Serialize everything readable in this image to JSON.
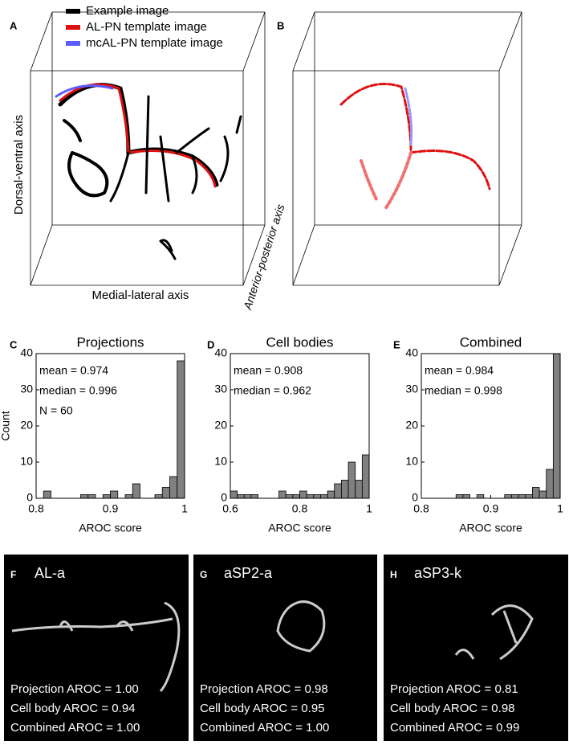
{
  "panels": [
    {
      "letter": "A",
      "legend": [
        {
          "label": "Example image",
          "color": "#000000"
        },
        {
          "label": "AL-PN template image",
          "color": "#e01010"
        },
        {
          "label": "mcAL-PN template image",
          "color": "#5b5bff"
        }
      ],
      "axes": [
        "Dorsal-ventral axis",
        "Medial-lateral axis",
        "Anterior-posterior axis"
      ]
    },
    {
      "letter": "B"
    }
  ],
  "chart_data": [
    {
      "type": "histogram",
      "letter": "C",
      "title": "Projections",
      "bins": [
        0.8,
        0.81,
        0.82,
        0.83,
        0.84,
        0.85,
        0.86,
        0.87,
        0.88,
        0.89,
        0.9,
        0.91,
        0.92,
        0.93,
        0.94,
        0.95,
        0.96,
        0.97,
        0.98,
        0.99,
        1
      ],
      "counts": [
        0,
        2,
        0,
        0,
        0,
        0,
        1,
        1,
        0,
        1,
        2,
        0,
        1,
        4,
        0,
        0,
        1,
        3,
        6,
        38
      ],
      "color": "#808080",
      "xlim": [
        0.8,
        1
      ],
      "xticks": [
        0.8,
        0.9,
        1
      ],
      "ylim": [
        0,
        40
      ],
      "yticks": [
        0,
        10,
        20,
        30,
        40
      ],
      "xlabel": "AROC score",
      "ylabel": "Count",
      "annotations": [
        "mean = 0.974",
        "median  = 0.996",
        "N = 60"
      ]
    },
    {
      "type": "histogram",
      "letter": "D",
      "title": "Cell bodies",
      "bins": [
        0.6,
        0.62,
        0.64,
        0.66,
        0.68,
        0.7,
        0.72,
        0.74,
        0.76,
        0.78,
        0.8,
        0.82,
        0.84,
        0.86,
        0.88,
        0.9,
        0.92,
        0.94,
        0.96,
        0.98,
        1
      ],
      "counts": [
        2,
        1,
        1,
        1,
        0,
        0,
        0,
        2,
        1,
        1,
        2,
        1,
        1,
        1,
        2,
        4,
        5,
        10,
        5,
        12
      ],
      "color": "#808080",
      "xlim": [
        0.6,
        1
      ],
      "xticks": [
        0.6,
        0.8,
        1
      ],
      "ylim": [
        0,
        40
      ],
      "yticks": [
        0,
        10,
        20,
        30,
        40
      ],
      "xlabel": "AROC score",
      "annotations": [
        "mean = 0.908",
        "median  = 0.962"
      ]
    },
    {
      "type": "histogram",
      "letter": "E",
      "title": "Combined",
      "bins": [
        0.8,
        0.81,
        0.82,
        0.83,
        0.84,
        0.85,
        0.86,
        0.87,
        0.88,
        0.89,
        0.9,
        0.91,
        0.92,
        0.93,
        0.94,
        0.95,
        0.96,
        0.97,
        0.98,
        0.99,
        1
      ],
      "counts": [
        0,
        0,
        0,
        0,
        0,
        1,
        1,
        0,
        1,
        0,
        0,
        0,
        1,
        1,
        1,
        1,
        3,
        2,
        8,
        40
      ],
      "color": "#808080",
      "xlim": [
        0.8,
        1
      ],
      "xticks": [
        0.8,
        0.9,
        1
      ],
      "ylim": [
        0,
        40
      ],
      "yticks": [
        0,
        10,
        20,
        30,
        40
      ],
      "xlabel": "AROC score",
      "annotations": [
        "mean = 0.984",
        "median  = 0.998"
      ]
    }
  ],
  "images": [
    {
      "letter": "F",
      "name": "AL-a",
      "lines": [
        "Projection AROC = 1.00",
        "Cell body AROC = 0.94",
        "Combined AROC =    1.00"
      ]
    },
    {
      "letter": "G",
      "name": "aSP2-a",
      "lines": [
        "Projection AROC = 0.98",
        "Cell body AROC = 0.95",
        "Combined AROC =    1.00"
      ]
    },
    {
      "letter": "H",
      "name": "aSP3-k",
      "lines": [
        "Projection AROC = 0.81",
        "Cell body AROC = 0.98",
        "Combined AROC =    0.99"
      ]
    }
  ]
}
